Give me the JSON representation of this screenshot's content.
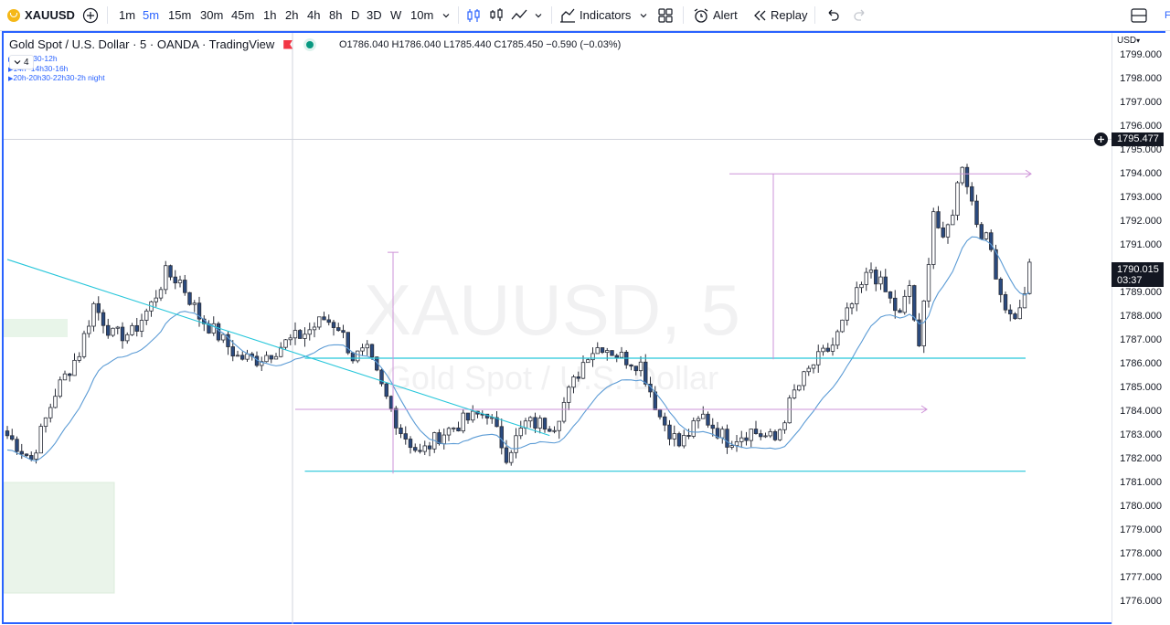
{
  "toolbar": {
    "symbol": "XAUUSD",
    "intervals": [
      "1m",
      "5m",
      "15m",
      "30m",
      "45m",
      "1h",
      "2h",
      "4h",
      "8h",
      "D",
      "3D",
      "W",
      "10m"
    ],
    "active_interval": "5m",
    "indicators_label": "Indicators",
    "alert_label": "Alert",
    "replay_label": "Replay",
    "right_edge_text": "F"
  },
  "legend": {
    "title": "Gold Spot / U.S. Dollar · 5 · OANDA · TradingView",
    "ohlc": "O1786.040  H1786.040  L1785.440  C1785.450  −0.590 (−0.03%)",
    "collapse_count": "4",
    "sessions": [
      "8h-8h30-12h",
      "14h -14h30-16h",
      "20h-20h30-22h30-2h night"
    ]
  },
  "watermark": {
    "symbol": "XAUUSD, 5",
    "name": "Gold Spot / U.S. Dollar"
  },
  "price_scale": {
    "currency": "USD",
    "ticks": [
      "1799.000",
      "1798.000",
      "1797.000",
      "1796.000",
      "1795.000",
      "1794.000",
      "1793.000",
      "1792.000",
      "1791.000",
      "1790.000",
      "1789.000",
      "1788.000",
      "1787.000",
      "1786.000",
      "1785.000",
      "1784.000",
      "1783.000",
      "1782.000",
      "1781.000",
      "1780.000",
      "1779.000",
      "1778.000",
      "1777.000",
      "1776.000"
    ],
    "crosshair_price": "1795.477",
    "last_price": "1790.015",
    "countdown": "03:37"
  },
  "colors": {
    "accent": "#2962ff",
    "candle_up": "#ffffff",
    "candle_down": "#2a4a7f",
    "ma_line": "#5b9bd5",
    "trend_line": "#26c6da",
    "projection": "#ce93d8",
    "zone_fill": "#e8f5e9"
  },
  "chart_data": {
    "type": "candlestick",
    "interval": "5m",
    "y_range": [
      1775.5,
      1799.3
    ],
    "horizontal_levels": [
      1786.25,
      1784.1,
      1781.5
    ],
    "trend_line": [
      [
        0,
        1790.4
      ],
      [
        113,
        1783.0
      ]
    ],
    "anchors": [
      [
        0,
        1783.0
      ],
      [
        5,
        1782.0
      ],
      [
        10,
        1784.8
      ],
      [
        15,
        1786.5
      ],
      [
        18,
        1788.5
      ],
      [
        22,
        1787.2
      ],
      [
        26,
        1787.3
      ],
      [
        30,
        1788.5
      ],
      [
        33,
        1789.8
      ],
      [
        36,
        1789.5
      ],
      [
        40,
        1788.0
      ],
      [
        44,
        1787.2
      ],
      [
        48,
        1786.3
      ],
      [
        52,
        1786.2
      ],
      [
        55,
        1786.5
      ],
      [
        58,
        1786.9
      ],
      [
        62,
        1787.3
      ],
      [
        66,
        1787.9
      ],
      [
        69,
        1787.6
      ],
      [
        72,
        1786.3
      ],
      [
        75,
        1786.5
      ],
      [
        78,
        1785.0
      ],
      [
        82,
        1783.2
      ],
      [
        86,
        1782.2
      ],
      [
        90,
        1783.0
      ],
      [
        95,
        1783.6
      ],
      [
        100,
        1784.0
      ],
      [
        104,
        1782.2
      ],
      [
        108,
        1783.5
      ],
      [
        114,
        1783.5
      ],
      [
        117,
        1784.8
      ],
      [
        121,
        1786.5
      ],
      [
        124,
        1786.8
      ],
      [
        128,
        1786.3
      ],
      [
        132,
        1786.0
      ],
      [
        136,
        1783.8
      ],
      [
        140,
        1782.6
      ],
      [
        145,
        1783.8
      ],
      [
        150,
        1782.8
      ],
      [
        155,
        1783.2
      ],
      [
        160,
        1782.8
      ],
      [
        164,
        1784.8
      ],
      [
        168,
        1786.0
      ],
      [
        172,
        1786.8
      ],
      [
        176,
        1788.5
      ],
      [
        180,
        1790.0
      ],
      [
        183,
        1789.0
      ],
      [
        186,
        1788.0
      ],
      [
        188,
        1789.3
      ],
      [
        190,
        1786.5
      ],
      [
        193,
        1792.5
      ],
      [
        195,
        1791.0
      ],
      [
        197,
        1792.5
      ],
      [
        199,
        1794.5
      ],
      [
        202,
        1792.0
      ],
      [
        205,
        1790.8
      ],
      [
        207,
        1789.0
      ],
      [
        209,
        1788.0
      ],
      [
        211,
        1788.2
      ],
      [
        213,
        1790.0
      ]
    ]
  }
}
